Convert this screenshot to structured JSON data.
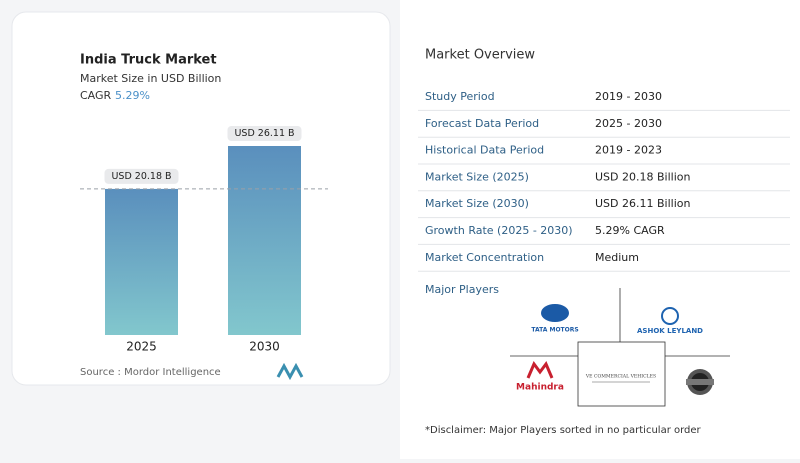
{
  "chart_data": {
    "type": "bar",
    "title": "India Truck Market",
    "subtitle": "Market Size in USD Billion",
    "cagr_label": "CAGR",
    "cagr": "5.29%",
    "categories": [
      "2025",
      "2030"
    ],
    "values": [
      20.18,
      26.11
    ],
    "value_labels": [
      "USD 20.18 B",
      "USD 26.11 B"
    ],
    "color_top": "#5a8fbd",
    "color_bottom": "#82c7cd",
    "source": "Source :  Mordor Intelligence"
  },
  "overview": {
    "title": "Market Overview",
    "rows": [
      [
        "Study Period",
        "2019 - 2030"
      ],
      [
        "Forecast Data Period",
        "2025 - 2030"
      ],
      [
        "Historical Data Period",
        "2019 - 2023"
      ],
      [
        "Market Size (2025)",
        "USD 20.18 Billion"
      ],
      [
        "Market Size (2030)",
        "USD 26.11 Billion"
      ],
      [
        "Growth Rate (2025 - 2030)",
        "5.29% CAGR"
      ],
      [
        "Market Concentration",
        "Medium"
      ]
    ],
    "players_title": "Major Players",
    "players": [
      "TATA MOTORS",
      "ASHOK LEYLAND",
      "Mahindra",
      "VE COMMERCIAL VEHICLES"
    ],
    "disclaimer": "*Disclaimer: Major Players sorted in no particular order"
  }
}
